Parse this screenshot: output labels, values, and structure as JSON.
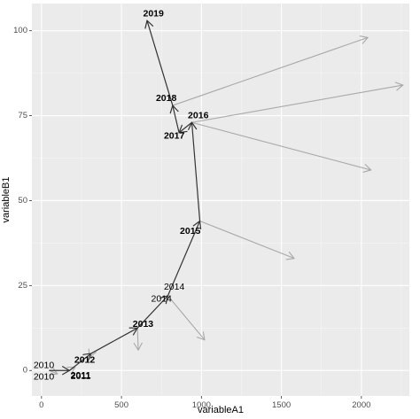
{
  "chart_data": {
    "type": "path",
    "xlabel": "variableA1",
    "ylabel": "variableB1",
    "xlim": [
      -60,
      2300
    ],
    "ylim": [
      -7.5,
      108
    ],
    "x_ticks": [
      0,
      500,
      1000,
      1500,
      2000
    ],
    "y_ticks": [
      0,
      25,
      50,
      75,
      100
    ],
    "grid": true,
    "colors": {
      "panel": "#ebebeb",
      "grid_major": "#ffffff",
      "grid_minor": "#f5f5f5",
      "main_path": "#333333",
      "secondary_arrows": "#a9a9a9"
    },
    "main_path": [
      {
        "year": "2010",
        "x": 50,
        "y": 0
      },
      {
        "year": "2011",
        "x": 175,
        "y": 0
      },
      {
        "year": "2012",
        "x": 310,
        "y": 5
      },
      {
        "year": "2013",
        "x": 600,
        "y": 12.5
      },
      {
        "year": "2014",
        "x": 790,
        "y": 22
      },
      {
        "year": "2015",
        "x": 990,
        "y": 44
      },
      {
        "year": "2016",
        "x": 940,
        "y": 73
      },
      {
        "year": "2017",
        "x": 860,
        "y": 70
      },
      {
        "year": "2018",
        "x": 820,
        "y": 78
      },
      {
        "year": "2019",
        "x": 660,
        "y": 103
      }
    ],
    "secondary_arrows": [
      {
        "from": [
          50,
          0
        ],
        "to": [
          100,
          -1
        ]
      },
      {
        "from": [
          175,
          0
        ],
        "to": [
          210,
          1
        ]
      },
      {
        "from": [
          310,
          5
        ],
        "to": [
          300,
          4
        ]
      },
      {
        "from": [
          600,
          12.5
        ],
        "to": [
          605,
          6
        ]
      },
      {
        "from": [
          790,
          22
        ],
        "to": [
          1020,
          9
        ]
      },
      {
        "from": [
          990,
          44
        ],
        "to": [
          1580,
          33
        ]
      },
      {
        "from": [
          940,
          73
        ],
        "to": [
          2060,
          59
        ]
      },
      {
        "from": [
          940,
          73
        ],
        "to": [
          2260,
          84
        ]
      },
      {
        "from": [
          820,
          78
        ],
        "to": [
          2040,
          98
        ]
      }
    ],
    "labels": [
      {
        "text": "2019",
        "x": 700,
        "y": 105,
        "bold": true
      },
      {
        "text": "2018",
        "x": 780,
        "y": 80,
        "bold": true
      },
      {
        "text": "2016",
        "x": 980,
        "y": 75,
        "bold": true
      },
      {
        "text": "2017",
        "x": 830,
        "y": 69,
        "bold": true
      },
      {
        "text": "2015",
        "x": 930,
        "y": 41,
        "bold": true
      },
      {
        "text": "2014",
        "x": 830,
        "y": 24.5,
        "bold": false
      },
      {
        "text": "2014",
        "x": 750,
        "y": 21,
        "bold": false
      },
      {
        "text": "2013",
        "x": 635,
        "y": 13.5,
        "bold": true
      },
      {
        "text": "2012",
        "x": 270,
        "y": 3,
        "bold": true
      },
      {
        "text": "2011",
        "x": 245,
        "y": -1.5,
        "bold": true
      },
      {
        "text": "2011",
        "x": 245,
        "y": -1.8,
        "bold": false
      },
      {
        "text": "2010",
        "x": 15,
        "y": 1.5,
        "bold": false
      },
      {
        "text": "2010",
        "x": 15,
        "y": -2,
        "bold": false
      }
    ]
  }
}
